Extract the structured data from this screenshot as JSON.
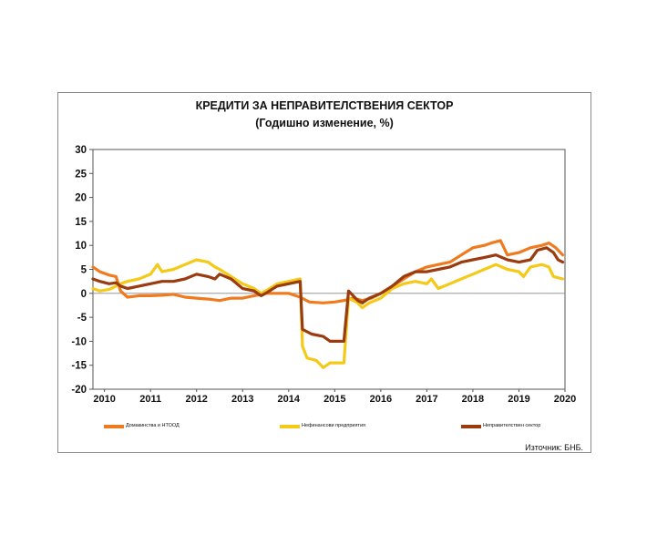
{
  "chart_data": {
    "type": "line",
    "title": "КРЕДИТИ ЗА НЕПРАВИТЕЛСТВЕНИЯ СЕКТОР",
    "subtitle": "(Годишно изменение, %)",
    "ylim": [
      -20,
      30
    ],
    "yticks": [
      30,
      25,
      20,
      15,
      10,
      5,
      0,
      -5,
      -10,
      -15,
      -20
    ],
    "xlim": [
      2009.75,
      2020.0
    ],
    "xticks": [
      "2010",
      "2011",
      "2012",
      "2013",
      "2014",
      "2015",
      "2016",
      "2017",
      "2018",
      "2019",
      "2020"
    ],
    "grid": false,
    "legend_position": "bottom",
    "series": [
      {
        "name": "Домакинства и НТООД",
        "color": "#f07a1e",
        "points": [
          [
            2009.75,
            5.5
          ],
          [
            2009.9,
            4.5
          ],
          [
            2010.1,
            3.8
          ],
          [
            2010.25,
            3.5
          ],
          [
            2010.35,
            0.5
          ],
          [
            2010.5,
            -0.8
          ],
          [
            2010.75,
            -0.5
          ],
          [
            2011.0,
            -0.5
          ],
          [
            2011.25,
            -0.4
          ],
          [
            2011.5,
            -0.2
          ],
          [
            2011.75,
            -0.8
          ],
          [
            2012.0,
            -1.0
          ],
          [
            2012.25,
            -1.2
          ],
          [
            2012.5,
            -1.5
          ],
          [
            2012.75,
            -1.0
          ],
          [
            2013.0,
            -1.0
          ],
          [
            2013.25,
            -0.5
          ],
          [
            2013.5,
            0.0
          ],
          [
            2013.75,
            0.0
          ],
          [
            2014.0,
            0.0
          ],
          [
            2014.25,
            -0.8
          ],
          [
            2014.45,
            -1.8
          ],
          [
            2014.75,
            -2.0
          ],
          [
            2015.0,
            -1.8
          ],
          [
            2015.2,
            -1.5
          ],
          [
            2015.4,
            -1.0
          ],
          [
            2015.6,
            -1.5
          ],
          [
            2015.8,
            -1.0
          ],
          [
            2016.0,
            0.0
          ],
          [
            2016.25,
            1.5
          ],
          [
            2016.5,
            3.0
          ],
          [
            2016.75,
            4.5
          ],
          [
            2017.0,
            5.5
          ],
          [
            2017.25,
            6.0
          ],
          [
            2017.5,
            6.5
          ],
          [
            2017.75,
            8.0
          ],
          [
            2018.0,
            9.5
          ],
          [
            2018.25,
            10.0
          ],
          [
            2018.4,
            10.5
          ],
          [
            2018.6,
            11.0
          ],
          [
            2018.75,
            8.0
          ],
          [
            2019.0,
            8.5
          ],
          [
            2019.25,
            9.5
          ],
          [
            2019.5,
            10.0
          ],
          [
            2019.65,
            10.5
          ],
          [
            2019.8,
            9.5
          ],
          [
            2019.95,
            8.0
          ]
        ]
      },
      {
        "name": "Нефинансови предприятия",
        "color": "#f5c918",
        "points": [
          [
            2009.75,
            1.0
          ],
          [
            2009.9,
            0.5
          ],
          [
            2010.1,
            0.8
          ],
          [
            2010.25,
            1.5
          ],
          [
            2010.35,
            2.0
          ],
          [
            2010.5,
            2.5
          ],
          [
            2010.75,
            3.0
          ],
          [
            2011.0,
            4.0
          ],
          [
            2011.15,
            6.0
          ],
          [
            2011.25,
            4.5
          ],
          [
            2011.5,
            5.0
          ],
          [
            2011.75,
            6.0
          ],
          [
            2012.0,
            7.0
          ],
          [
            2012.25,
            6.5
          ],
          [
            2012.4,
            5.5
          ],
          [
            2012.5,
            5.0
          ],
          [
            2012.75,
            3.5
          ],
          [
            2013.0,
            2.0
          ],
          [
            2013.25,
            1.0
          ],
          [
            2013.4,
            0.0
          ],
          [
            2013.5,
            0.5
          ],
          [
            2013.75,
            2.0
          ],
          [
            2014.0,
            2.5
          ],
          [
            2014.25,
            3.0
          ],
          [
            2014.3,
            -11.0
          ],
          [
            2014.4,
            -13.5
          ],
          [
            2014.6,
            -14.0
          ],
          [
            2014.75,
            -15.5
          ],
          [
            2014.9,
            -14.5
          ],
          [
            2015.0,
            -14.5
          ],
          [
            2015.2,
            -14.5
          ],
          [
            2015.3,
            -1.0
          ],
          [
            2015.5,
            -2.0
          ],
          [
            2015.6,
            -3.0
          ],
          [
            2015.75,
            -2.0
          ],
          [
            2016.0,
            -1.0
          ],
          [
            2016.25,
            1.0
          ],
          [
            2016.5,
            2.0
          ],
          [
            2016.75,
            2.5
          ],
          [
            2017.0,
            2.0
          ],
          [
            2017.1,
            3.0
          ],
          [
            2017.25,
            1.0
          ],
          [
            2017.5,
            2.0
          ],
          [
            2017.75,
            3.0
          ],
          [
            2018.0,
            4.0
          ],
          [
            2018.25,
            5.0
          ],
          [
            2018.5,
            6.0
          ],
          [
            2018.75,
            5.0
          ],
          [
            2019.0,
            4.5
          ],
          [
            2019.1,
            3.5
          ],
          [
            2019.25,
            5.5
          ],
          [
            2019.5,
            6.0
          ],
          [
            2019.65,
            5.5
          ],
          [
            2019.75,
            3.5
          ],
          [
            2019.95,
            3.0
          ]
        ]
      },
      {
        "name": "Неправителствен сектор",
        "color": "#9a3b10",
        "points": [
          [
            2009.75,
            3.0
          ],
          [
            2009.9,
            2.5
          ],
          [
            2010.1,
            2.0
          ],
          [
            2010.25,
            2.2
          ],
          [
            2010.35,
            1.5
          ],
          [
            2010.5,
            1.0
          ],
          [
            2010.75,
            1.5
          ],
          [
            2011.0,
            2.0
          ],
          [
            2011.25,
            2.5
          ],
          [
            2011.5,
            2.5
          ],
          [
            2011.75,
            3.0
          ],
          [
            2012.0,
            4.0
          ],
          [
            2012.25,
            3.5
          ],
          [
            2012.4,
            3.0
          ],
          [
            2012.5,
            4.0
          ],
          [
            2012.75,
            3.0
          ],
          [
            2013.0,
            1.0
          ],
          [
            2013.25,
            0.5
          ],
          [
            2013.4,
            -0.5
          ],
          [
            2013.5,
            0.0
          ],
          [
            2013.75,
            1.5
          ],
          [
            2014.0,
            2.0
          ],
          [
            2014.25,
            2.5
          ],
          [
            2014.3,
            -7.5
          ],
          [
            2014.5,
            -8.5
          ],
          [
            2014.75,
            -9.0
          ],
          [
            2014.9,
            -10.0
          ],
          [
            2015.0,
            -10.0
          ],
          [
            2015.2,
            -10.0
          ],
          [
            2015.3,
            0.5
          ],
          [
            2015.5,
            -1.5
          ],
          [
            2015.6,
            -2.0
          ],
          [
            2015.75,
            -1.0
          ],
          [
            2016.0,
            0.0
          ],
          [
            2016.25,
            1.5
          ],
          [
            2016.5,
            3.5
          ],
          [
            2016.75,
            4.5
          ],
          [
            2017.0,
            4.5
          ],
          [
            2017.25,
            5.0
          ],
          [
            2017.5,
            5.5
          ],
          [
            2017.75,
            6.5
          ],
          [
            2018.0,
            7.0
          ],
          [
            2018.25,
            7.5
          ],
          [
            2018.5,
            8.0
          ],
          [
            2018.75,
            7.0
          ],
          [
            2019.0,
            6.5
          ],
          [
            2019.25,
            7.0
          ],
          [
            2019.4,
            9.0
          ],
          [
            2019.6,
            9.5
          ],
          [
            2019.75,
            8.5
          ],
          [
            2019.85,
            7.0
          ],
          [
            2019.95,
            6.5
          ]
        ]
      }
    ],
    "source": "Източник: БНБ."
  }
}
